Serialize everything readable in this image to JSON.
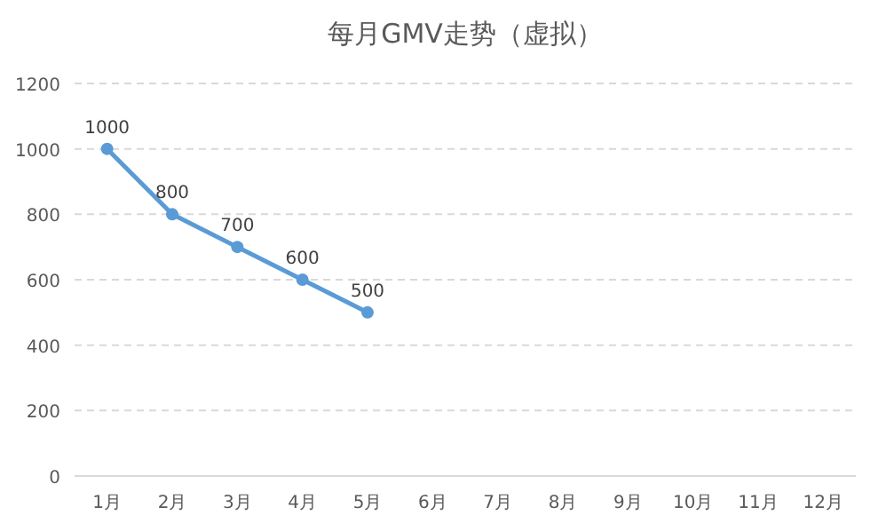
{
  "chart_data": {
    "type": "line",
    "title": "每月GMV走势（虚拟）",
    "categories": [
      "1月",
      "2月",
      "3月",
      "4月",
      "5月",
      "6月",
      "7月",
      "8月",
      "9月",
      "10月",
      "11月",
      "12月"
    ],
    "series": [
      {
        "color": "#5b9bd5",
        "values": [
          1000,
          800,
          700,
          600,
          500,
          null,
          null,
          null,
          null,
          null,
          null,
          null
        ]
      }
    ],
    "ylim": [
      0,
      1200
    ],
    "yticks": [
      0,
      200,
      400,
      600,
      800,
      1000,
      1200
    ],
    "grid": "y",
    "data_labels": true,
    "marker": "circle",
    "line_style": "solid"
  }
}
